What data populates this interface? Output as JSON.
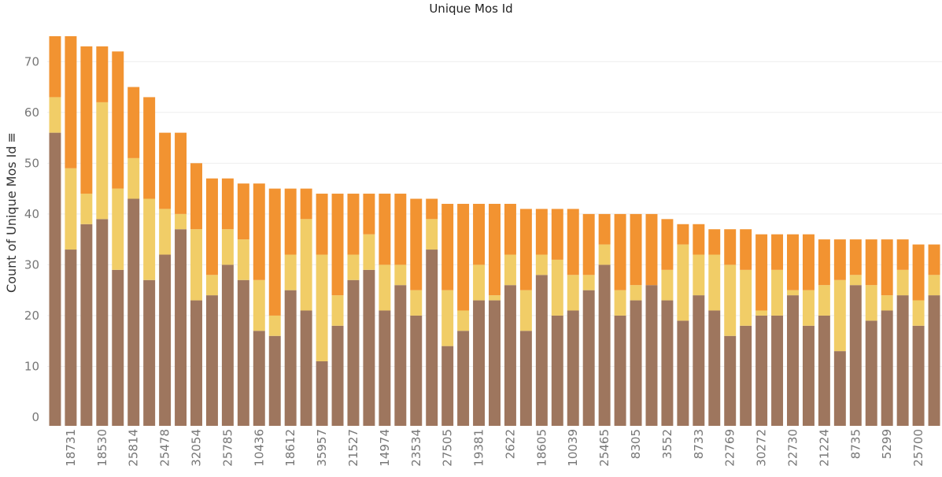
{
  "chart_data": {
    "type": "bar",
    "stacked": true,
    "title": "Unique Mos Id",
    "xlabel": "",
    "ylabel": "Count of Unique Mos Id",
    "ylabel_suffix": "≡",
    "ylim": [
      0,
      75
    ],
    "yticks": [
      0,
      10,
      20,
      30,
      40,
      50,
      60,
      70
    ],
    "grid": true,
    "legend": "none",
    "category_labels": {
      "1": "18731",
      "3": "18530",
      "5": "25814",
      "7": "25478",
      "9": "32054",
      "11": "25785",
      "13": "10436",
      "15": "18612",
      "17": "35957",
      "19": "21527",
      "21": "14974",
      "23": "23534",
      "25": "27505",
      "27": "19381",
      "29": "2622",
      "31": "18605",
      "33": "10039",
      "35": "25465",
      "37": "8305",
      "39": "3552",
      "41": "8733",
      "43": "22769",
      "45": "30272",
      "47": "22730",
      "49": "21224",
      "51": "8735",
      "53": "5299",
      "55": "25700"
    },
    "series": [
      {
        "name": "",
        "color": "#9e765e",
        "values": [
          56,
          33,
          38,
          39,
          29,
          43,
          27,
          32,
          37,
          23,
          24,
          30,
          27,
          17,
          16,
          25,
          21,
          11,
          18,
          27,
          29,
          21,
          26,
          20,
          33,
          14,
          17,
          23,
          23,
          26,
          17,
          28,
          20,
          21,
          25,
          30,
          20,
          23,
          26,
          23,
          19,
          24,
          21,
          16,
          18,
          20,
          20,
          24,
          18,
          20,
          13,
          26,
          19,
          21,
          24,
          18,
          24
        ]
      },
      {
        "name": "",
        "color": "#f1cd67",
        "values": [
          7,
          16,
          6,
          23,
          16,
          8,
          16,
          9,
          3,
          14,
          4,
          7,
          8,
          10,
          4,
          7,
          18,
          21,
          6,
          5,
          7,
          9,
          4,
          5,
          6,
          11,
          4,
          7,
          1,
          6,
          8,
          4,
          11,
          7,
          3,
          4,
          5,
          3,
          0,
          6,
          15,
          8,
          11,
          14,
          11,
          1,
          9,
          1,
          7,
          6,
          14,
          2,
          7,
          3,
          5,
          5,
          4
        ]
      },
      {
        "name": "",
        "color": "#f29331",
        "values": [
          12,
          26,
          29,
          11,
          27,
          14,
          20,
          15,
          16,
          13,
          19,
          10,
          11,
          19,
          25,
          13,
          6,
          12,
          20,
          12,
          8,
          14,
          14,
          18,
          4,
          17,
          21,
          12,
          18,
          10,
          16,
          9,
          10,
          13,
          12,
          6,
          15,
          14,
          14,
          10,
          4,
          6,
          5,
          7,
          8,
          15,
          7,
          11,
          11,
          9,
          8,
          7,
          9,
          11,
          6,
          11,
          6
        ]
      }
    ]
  }
}
